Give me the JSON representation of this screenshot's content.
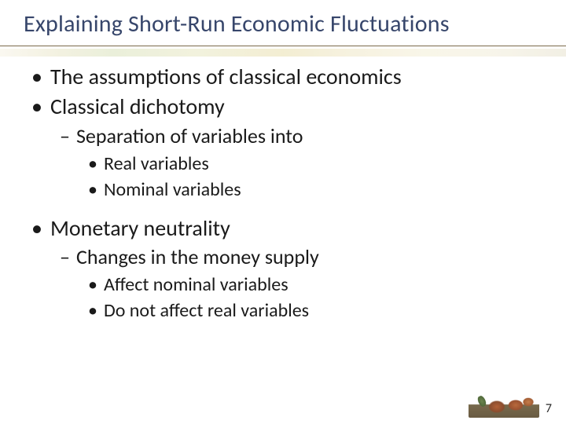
{
  "title": {
    "text": "Explaining Short-Run Economic Fluctuations",
    "color": "#37466b",
    "fontsize": 30
  },
  "bullets": [
    {
      "level": 1,
      "marker": "•",
      "text": "The assumptions of classical economics"
    },
    {
      "level": 1,
      "marker": "•",
      "text": "Classical dichotomy"
    },
    {
      "level": 2,
      "marker": "–",
      "text": "Separation of variables into"
    },
    {
      "level": 3,
      "marker": "•",
      "text": "Real variables"
    },
    {
      "level": 3,
      "marker": "•",
      "text": "Nominal variables"
    },
    {
      "level": 1,
      "marker": "•",
      "text": "Monetary neutrality"
    },
    {
      "level": 2,
      "marker": "–",
      "text": "Changes in the money supply"
    },
    {
      "level": 3,
      "marker": "•",
      "text": "Affect nominal variables"
    },
    {
      "level": 3,
      "marker": "•",
      "text": "Do not affect real variables"
    }
  ],
  "typography": {
    "body_color": "#1a1a1a",
    "lvl1_fontsize": 28,
    "lvl2_fontsize": 26,
    "lvl3_fontsize": 24,
    "gap_before_lvl1": 16,
    "gap_after_lvl3_block": 8
  },
  "underline": {
    "thin_color": "#7a6a4a",
    "band_opacity": 0.55
  },
  "page_number": "7",
  "background_color": "#ffffff"
}
